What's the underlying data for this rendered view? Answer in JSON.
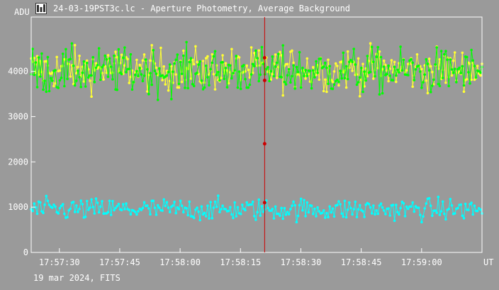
{
  "window": {
    "title": "24-03-19PST3c.lc - Aperture Photometry, Average Background",
    "icon": "photometry-app-icon"
  },
  "footer": {
    "caption": "19 mar 2024, FITS"
  },
  "colors": {
    "background": "#9a9a9a",
    "frame": "#ffffff",
    "series_yellow": "#ffff33",
    "series_green": "#00ff00",
    "series_cyan": "#00ffff",
    "cursor": "#cc0000"
  },
  "chart_data": {
    "type": "scatter",
    "ylabel": "ADU",
    "xlabel": "UT",
    "ylim": [
      0,
      5200
    ],
    "yticks": [
      0,
      1000,
      2000,
      3000,
      4000
    ],
    "x_range": [
      "17:57:23",
      "17:59:15"
    ],
    "xticks": [
      "17:57:30",
      "17:57:45",
      "17:58:00",
      "17:58:15",
      "17:58:30",
      "17:58:45",
      "17:59:00"
    ],
    "grid": false,
    "cursor": {
      "x": "17:58:21",
      "marker_values": [
        4300,
        3800,
        2400,
        1100
      ]
    },
    "series": [
      {
        "color": "yellow",
        "mean": 4050,
        "scatter": 230,
        "min": 3400,
        "max": 4700
      },
      {
        "color": "green",
        "mean": 4000,
        "scatter": 250,
        "min": 3300,
        "max": 4750
      },
      {
        "color": "cyan",
        "mean": 950,
        "scatter": 120,
        "min": 600,
        "max": 1350
      }
    ]
  }
}
